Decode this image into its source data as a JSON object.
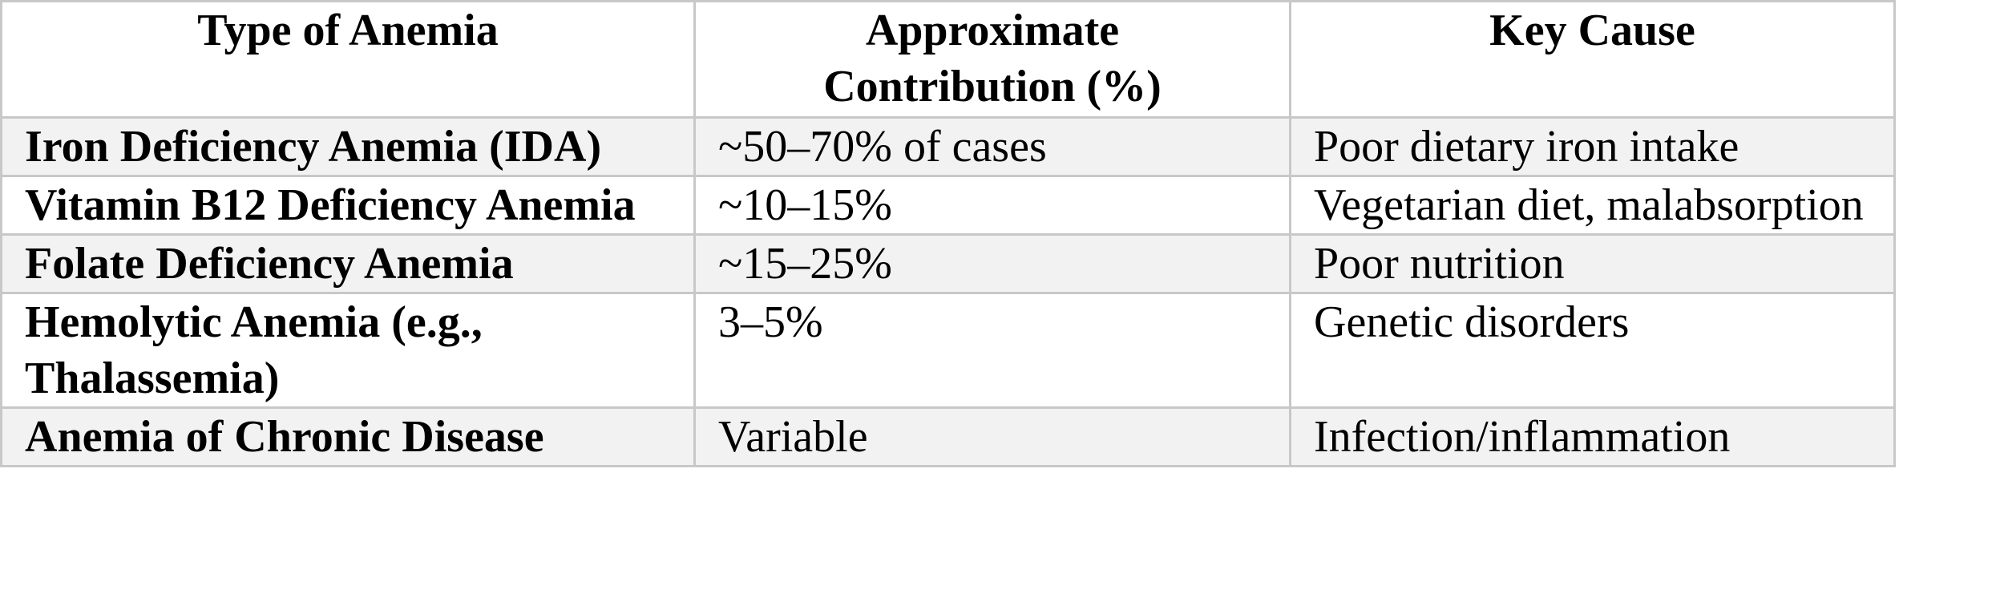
{
  "table": {
    "header": [
      "Type of Anemia",
      "Approximate Contribution (%)",
      "Key Cause"
    ],
    "rows": [
      [
        "Iron Deficiency Anemia (IDA)",
        "~50–70% of cases",
        "Poor dietary iron intake"
      ],
      [
        "Vitamin B12 Deficiency Anemia",
        "~10–15%",
        "Vegetarian diet, malabsorption"
      ],
      [
        "Folate Deficiency Anemia",
        "~15–25%",
        "Poor nutrition"
      ],
      [
        "Hemolytic Anemia (e.g., Thalassemia)",
        "3–5%",
        "Genetic disorders"
      ],
      [
        "Anemia of Chronic Disease",
        "Variable",
        "Infection/inflammation"
      ]
    ]
  }
}
